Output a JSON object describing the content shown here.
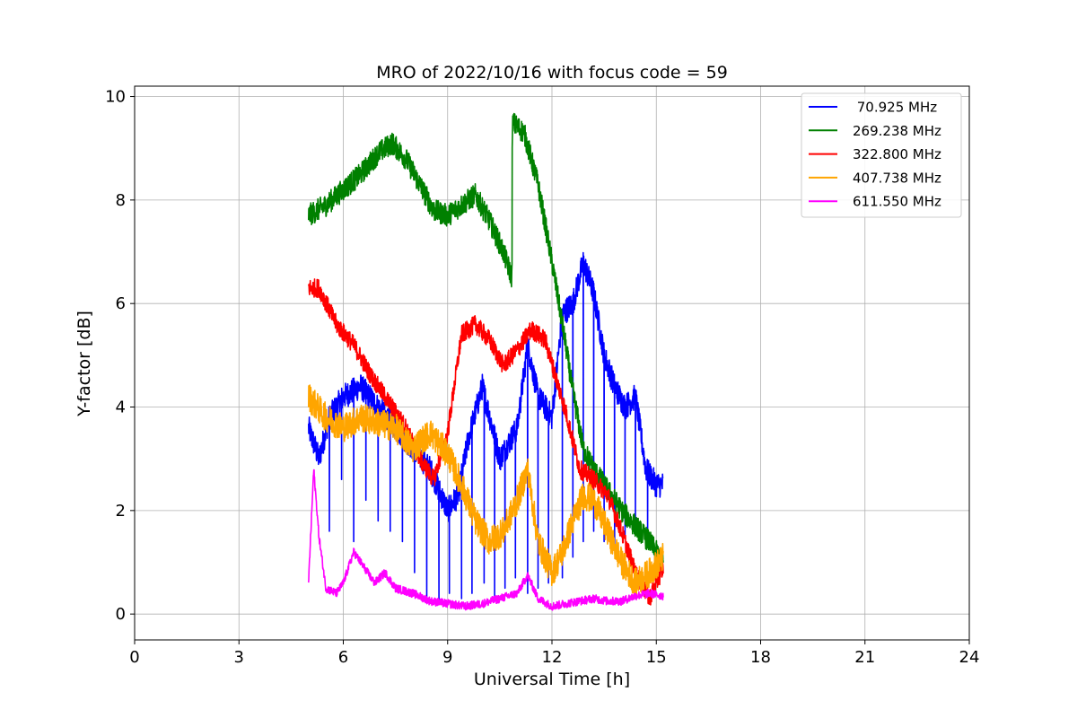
{
  "chart_data": {
    "type": "line",
    "title": "MRO of 2022/10/16 with focus code = 59",
    "xlabel": "Universal Time [h]",
    "ylabel": "Y-factor [dB]",
    "xlim": [
      0,
      24
    ],
    "ylim": [
      -0.5,
      10.2
    ],
    "xticks": [
      0,
      3,
      6,
      9,
      12,
      15,
      18,
      21,
      24
    ],
    "yticks": [
      0,
      2,
      4,
      6,
      8,
      10
    ],
    "xtick_labels": [
      "0",
      "3",
      "6",
      "9",
      "12",
      "15",
      "18",
      "21",
      "24"
    ],
    "ytick_labels": [
      "0",
      "2",
      "4",
      "6",
      "8",
      "10"
    ],
    "grid": true,
    "legend_position": "upper-right",
    "series": [
      {
        "name": "70.925 MHz",
        "legend_label": " 70.925 MHz",
        "color": "#0000ff",
        "noise": 0.25,
        "x": [
          5.0,
          5.3,
          5.6,
          6.0,
          6.5,
          7.0,
          7.5,
          8.0,
          8.5,
          9.0,
          9.3,
          9.6,
          10.0,
          10.5,
          11.0,
          11.3,
          11.6,
          12.0,
          12.3,
          12.6,
          12.9,
          13.2,
          13.5,
          13.8,
          14.1,
          14.4,
          14.7,
          15.0,
          15.2
        ],
        "y": [
          3.6,
          3.0,
          3.8,
          4.2,
          4.4,
          4.0,
          3.6,
          3.2,
          2.8,
          2.0,
          2.3,
          3.4,
          4.4,
          3.0,
          3.6,
          5.2,
          4.2,
          3.8,
          5.8,
          6.0,
          6.8,
          6.2,
          5.0,
          4.4,
          4.0,
          4.2,
          2.8,
          2.5,
          2.5
        ],
        "dips": [
          [
            5.6,
            1.6
          ],
          [
            5.95,
            2.6
          ],
          [
            6.3,
            1.4
          ],
          [
            6.65,
            2.2
          ],
          [
            7.0,
            1.8
          ],
          [
            7.35,
            1.6
          ],
          [
            7.7,
            1.4
          ],
          [
            8.05,
            0.8
          ],
          [
            8.4,
            0.3
          ],
          [
            8.75,
            0.2
          ],
          [
            9.05,
            0.4
          ],
          [
            9.4,
            0.3
          ],
          [
            9.7,
            0.4
          ],
          [
            10.05,
            0.6
          ],
          [
            10.35,
            0.3
          ],
          [
            10.65,
            0.5
          ],
          [
            10.95,
            0.7
          ],
          [
            11.3,
            0.4
          ],
          [
            11.6,
            0.5
          ],
          [
            11.9,
            0.6
          ],
          [
            12.3,
            0.7
          ],
          [
            12.6,
            1.1
          ],
          [
            12.9,
            1.4
          ],
          [
            13.2,
            1.6
          ],
          [
            13.5,
            1.4
          ],
          [
            13.8,
            1.3
          ],
          [
            14.1,
            1.5
          ],
          [
            14.4,
            1.8
          ],
          [
            14.75,
            1.6
          ]
        ]
      },
      {
        "name": "269.238 MHz",
        "legend_label": "269.238 MHz",
        "color": "#008000",
        "noise": 0.22,
        "x": [
          5.0,
          5.5,
          6.0,
          6.5,
          7.0,
          7.4,
          7.8,
          8.2,
          8.6,
          9.0,
          9.4,
          9.8,
          10.2,
          10.6,
          10.85,
          10.86,
          11.2,
          11.6,
          12.0,
          12.3,
          12.6,
          12.9,
          13.2,
          13.6,
          14.0,
          14.4,
          14.8,
          15.2
        ],
        "y": [
          7.7,
          7.9,
          8.2,
          8.5,
          8.9,
          9.1,
          8.8,
          8.3,
          7.8,
          7.7,
          7.9,
          8.1,
          7.6,
          7.0,
          6.5,
          9.5,
          9.3,
          8.3,
          6.8,
          5.6,
          4.3,
          3.2,
          2.8,
          2.4,
          2.0,
          1.7,
          1.4,
          1.0
        ],
        "dips": []
      },
      {
        "name": "322.800 MHz",
        "legend_label": "322.800 MHz",
        "color": "#ff0000",
        "noise": 0.18,
        "x": [
          5.0,
          5.3,
          5.8,
          6.3,
          6.8,
          7.3,
          7.8,
          8.2,
          8.6,
          9.0,
          9.4,
          9.8,
          10.2,
          10.6,
          11.0,
          11.4,
          11.8,
          12.1,
          12.4,
          12.8,
          13.2,
          13.6,
          14.0,
          14.4,
          14.8,
          15.2
        ],
        "y": [
          6.3,
          6.3,
          5.6,
          5.2,
          4.6,
          4.1,
          3.6,
          3.0,
          2.6,
          3.5,
          5.4,
          5.6,
          5.3,
          4.8,
          5.1,
          5.5,
          5.3,
          4.6,
          3.9,
          2.8,
          2.6,
          2.3,
          1.6,
          0.8,
          0.3,
          0.9
        ],
        "dips": []
      },
      {
        "name": "407.738 MHz",
        "legend_label": "407.738 MHz",
        "color": "#ffa500",
        "noise": 0.28,
        "x": [
          5.0,
          5.5,
          6.0,
          6.5,
          7.0,
          7.5,
          8.0,
          8.5,
          9.0,
          9.4,
          9.8,
          10.2,
          10.6,
          11.0,
          11.3,
          11.6,
          12.0,
          12.3,
          12.6,
          12.9,
          13.2,
          13.6,
          14.0,
          14.4,
          14.8,
          15.2
        ],
        "y": [
          4.2,
          3.8,
          3.6,
          3.8,
          3.7,
          3.6,
          3.2,
          3.5,
          3.1,
          2.5,
          1.8,
          1.4,
          1.6,
          2.2,
          2.8,
          1.4,
          0.8,
          1.2,
          1.8,
          2.3,
          2.2,
          1.6,
          1.0,
          0.6,
          0.8,
          1.1
        ],
        "dips": []
      },
      {
        "name": "611.550 MHz",
        "legend_label": "611.550 MHz",
        "color": "#ff00ff",
        "noise": 0.08,
        "x": [
          5.0,
          5.15,
          5.3,
          5.5,
          5.8,
          6.0,
          6.3,
          6.6,
          6.9,
          7.2,
          7.5,
          8.0,
          8.5,
          9.0,
          9.5,
          10.0,
          10.5,
          11.0,
          11.3,
          11.6,
          12.0,
          12.4,
          12.8,
          13.2,
          13.6,
          14.0,
          14.4,
          14.8,
          15.2
        ],
        "y": [
          0.6,
          2.8,
          1.5,
          0.5,
          0.4,
          0.6,
          1.2,
          0.9,
          0.6,
          0.8,
          0.5,
          0.4,
          0.25,
          0.2,
          0.15,
          0.2,
          0.3,
          0.4,
          0.75,
          0.3,
          0.15,
          0.2,
          0.25,
          0.3,
          0.25,
          0.25,
          0.35,
          0.4,
          0.35
        ],
        "dips": []
      }
    ]
  }
}
